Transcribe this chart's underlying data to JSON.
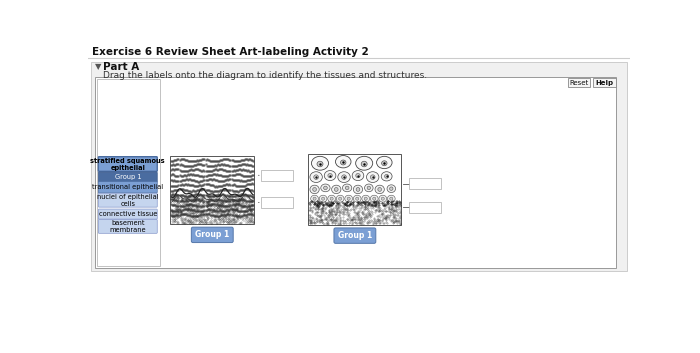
{
  "title": "Exercise 6 Review Sheet Art-labeling Activity 2",
  "part_label": "Part A",
  "instruction": "Drag the labels onto the diagram to identify the tissues and structures.",
  "bg_color": "#ffffff",
  "panel_bg": "#f0f0f0",
  "inner_bg": "#ffffff",
  "left_labels": [
    {
      "text": "stratified squamous\nepithelial",
      "color": "#7b9fd4",
      "text_color": "#000000",
      "bold": true,
      "border": "#4a6ca0"
    },
    {
      "text": "Group 1",
      "color": "#4a6ca0",
      "text_color": "#ffffff",
      "bold": false,
      "border": "#3a5888"
    },
    {
      "text": "transitional epithelial",
      "color": "#7b9fd4",
      "text_color": "#000000",
      "bold": false,
      "border": "#4a6ca0"
    },
    {
      "text": "nuclei of epithelial\ncells",
      "color": "#c5d5ee",
      "text_color": "#000000",
      "bold": false,
      "border": "#8899cc"
    },
    {
      "text": "connective tissue",
      "color": "#c5d5ee",
      "text_color": "#000000",
      "bold": false,
      "border": "#8899cc"
    },
    {
      "text": "basement\nmembrane",
      "color": "#c5d5ee",
      "text_color": "#000000",
      "bold": false,
      "border": "#8899cc"
    }
  ],
  "diagram1_bottom": "Group 1",
  "diagram2_bottom": "Group 1",
  "reset_btn": "Reset",
  "help_btn": "Help",
  "group2_box_color": "#ffffff",
  "group1_box_color": "#7b9fd4",
  "group1_text_color": "#ffffff"
}
